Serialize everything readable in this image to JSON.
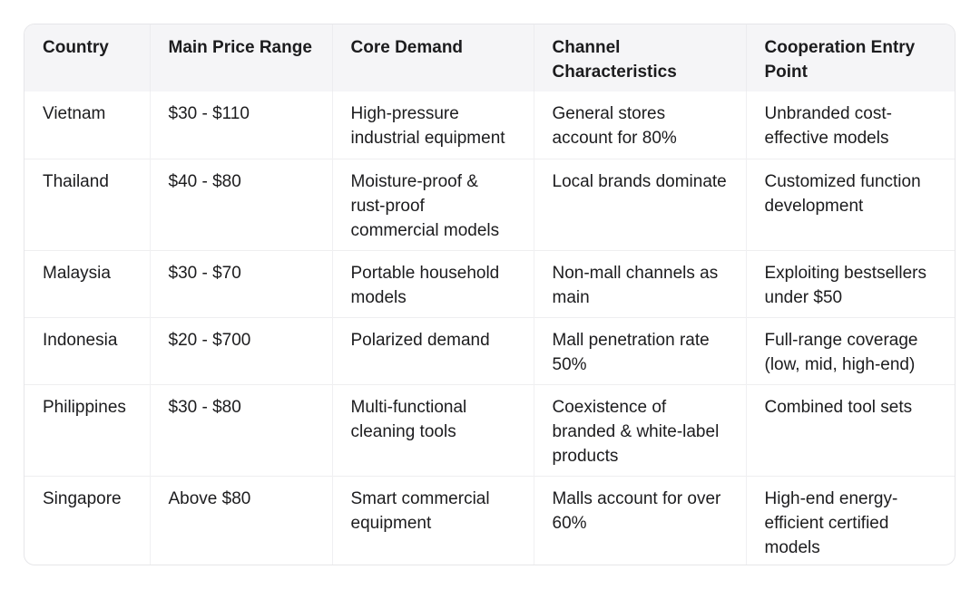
{
  "table": {
    "headers": [
      "Country",
      "Main Price Range",
      "Core Demand",
      "Channel Characteristics",
      "Cooperation Entry Point"
    ],
    "rows": [
      [
        "Vietnam",
        "$30 - $110",
        "High-pressure industrial equipment",
        "General stores account for 80%",
        "Unbranded cost-effective models"
      ],
      [
        "Thailand",
        "$40 - $80",
        "Moisture-proof & rust-proof commercial models",
        "Local brands dominate",
        "Customized function development"
      ],
      [
        "Malaysia",
        "$30 - $70",
        "Portable household models",
        "Non-mall channels as main",
        "Exploiting bestsellers under $50"
      ],
      [
        "Indonesia",
        "$20 - $700",
        "Polarized demand",
        "Mall penetration rate 50%",
        "Full-range coverage (low, mid, high-end)"
      ],
      [
        "Philippines",
        "$30 - $80",
        "Multi-functional cleaning tools",
        "Coexistence of branded & white-label products",
        "Combined tool sets"
      ],
      [
        "Singapore",
        "Above $80",
        "Smart commercial equipment",
        "Malls account for over 60%",
        "High-end energy-efficient certified models"
      ]
    ]
  }
}
